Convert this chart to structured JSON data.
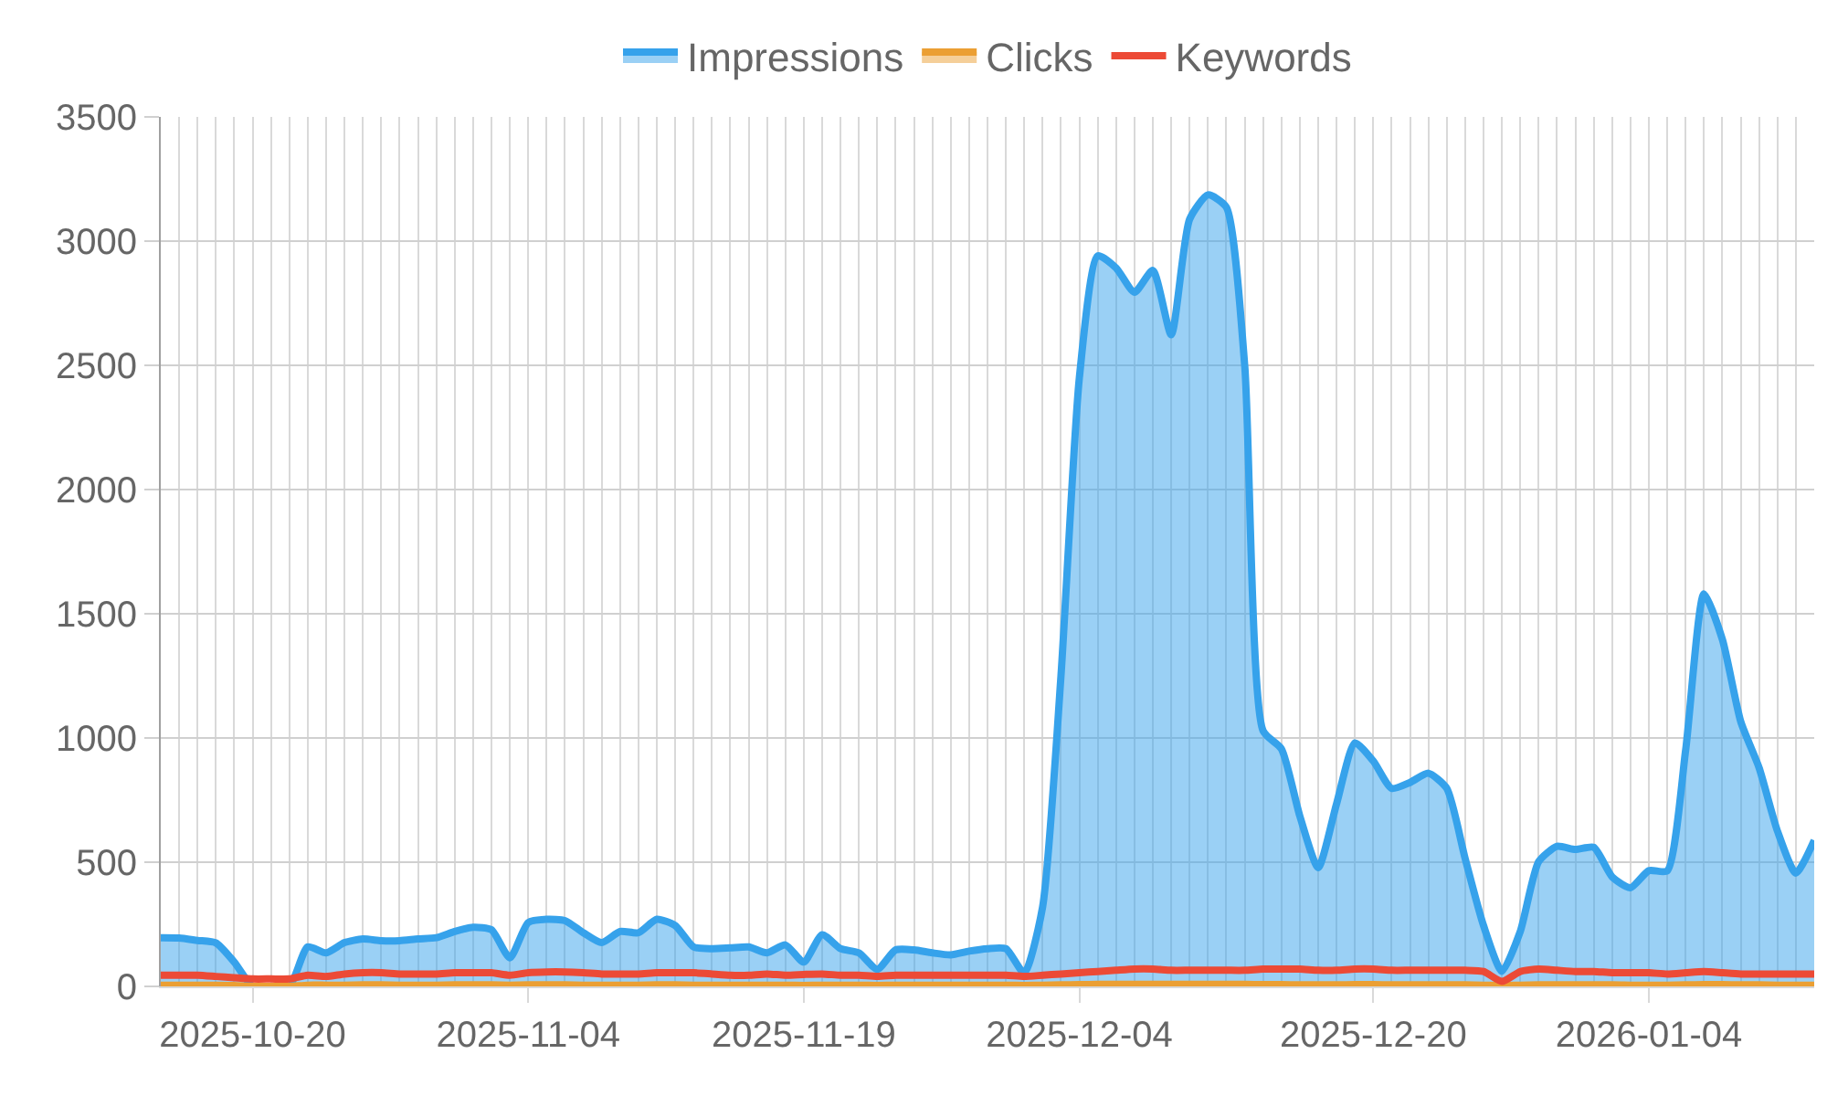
{
  "chart_data": {
    "type": "area",
    "x": [
      "2025-10-15",
      "2025-10-16",
      "2025-10-17",
      "2025-10-18",
      "2025-10-19",
      "2025-10-20",
      "2025-10-21",
      "2025-10-22",
      "2025-10-23",
      "2025-10-24",
      "2025-10-25",
      "2025-10-26",
      "2025-10-27",
      "2025-10-28",
      "2025-10-29",
      "2025-10-30",
      "2025-10-31",
      "2025-11-01",
      "2025-11-02",
      "2025-11-03",
      "2025-11-04",
      "2025-11-05",
      "2025-11-06",
      "2025-11-07",
      "2025-11-08",
      "2025-11-09",
      "2025-11-10",
      "2025-11-11",
      "2025-11-12",
      "2025-11-13",
      "2025-11-14",
      "2025-11-15",
      "2025-11-16",
      "2025-11-17",
      "2025-11-18",
      "2025-11-19",
      "2025-11-20",
      "2025-11-21",
      "2025-11-22",
      "2025-11-23",
      "2025-11-24",
      "2025-11-25",
      "2025-11-26",
      "2025-11-27",
      "2025-11-28",
      "2025-11-29",
      "2025-11-30",
      "2025-12-01",
      "2025-12-02",
      "2025-12-03",
      "2025-12-04",
      "2025-12-05",
      "2025-12-06",
      "2025-12-07",
      "2025-12-08",
      "2025-12-09",
      "2025-12-10",
      "2025-12-11",
      "2025-12-12",
      "2025-12-13",
      "2025-12-14",
      "2025-12-15",
      "2025-12-16",
      "2025-12-17",
      "2025-12-18",
      "2025-12-19",
      "2025-12-20",
      "2025-12-21",
      "2025-12-22",
      "2025-12-23",
      "2025-12-24",
      "2025-12-25",
      "2025-12-26",
      "2025-12-27",
      "2025-12-28",
      "2025-12-29",
      "2025-12-30",
      "2025-12-31",
      "2026-01-01",
      "2026-01-02",
      "2026-01-03",
      "2026-01-04",
      "2026-01-05",
      "2026-01-06",
      "2026-01-07",
      "2026-01-08",
      "2026-01-09",
      "2026-01-10",
      "2026-01-11",
      "2026-01-12",
      "2026-01-13"
    ],
    "series": [
      {
        "name": "Impressions",
        "color": "#36a2eb",
        "values": [
          196,
          195,
          185,
          175,
          98,
          0,
          0,
          0,
          159,
          135,
          176,
          191,
          184,
          184,
          191,
          196,
          221,
          238,
          228,
          115,
          257,
          270,
          265,
          216,
          176,
          221,
          216,
          270,
          245,
          159,
          152,
          155,
          159,
          135,
          167,
          98,
          208,
          152,
          135,
          69,
          147,
          147,
          135,
          127,
          142,
          152,
          152,
          54,
          320,
          1250,
          2450,
          2941,
          2892,
          2794,
          2882,
          2623,
          3088,
          3186,
          3137,
          2500,
          1029,
          956,
          686,
          478,
          735,
          980,
          907,
          797,
          821,
          858,
          797,
          515,
          245,
          61,
          221,
          502,
          564,
          551,
          560,
          441,
          397,
          466,
          465,
          950,
          1580,
          1397,
          1066,
          880,
          625,
          456,
          588
        ]
      },
      {
        "name": "Clicks",
        "color": "#eb9f33",
        "values": [
          5,
          5,
          5,
          5,
          4,
          0,
          0,
          0,
          5,
          5,
          5,
          6,
          6,
          5,
          5,
          5,
          6,
          6,
          6,
          5,
          6,
          6,
          6,
          5,
          5,
          5,
          5,
          6,
          6,
          5,
          5,
          5,
          5,
          5,
          5,
          4,
          5,
          5,
          5,
          4,
          5,
          5,
          5,
          5,
          5,
          5,
          5,
          4,
          5,
          6,
          7,
          8,
          8,
          8,
          8,
          8,
          8,
          8,
          8,
          8,
          7,
          7,
          6,
          6,
          6,
          7,
          7,
          6,
          6,
          6,
          6,
          6,
          5,
          3,
          5,
          6,
          6,
          6,
          6,
          6,
          5,
          5,
          5,
          6,
          7,
          7,
          6,
          6,
          5,
          5,
          5
        ]
      },
      {
        "name": "Keywords",
        "type": "line",
        "color": "#ec4a36",
        "values": [
          45,
          45,
          45,
          40,
          35,
          30,
          30,
          30,
          45,
          40,
          50,
          55,
          55,
          50,
          50,
          50,
          55,
          55,
          55,
          45,
          55,
          58,
          58,
          55,
          50,
          50,
          50,
          55,
          55,
          55,
          50,
          45,
          45,
          50,
          45,
          48,
          50,
          45,
          45,
          40,
          45,
          45,
          45,
          45,
          45,
          45,
          45,
          40,
          45,
          50,
          55,
          60,
          65,
          70,
          70,
          65,
          65,
          65,
          65,
          65,
          70,
          70,
          70,
          65,
          65,
          70,
          70,
          65,
          65,
          65,
          65,
          65,
          60,
          20,
          60,
          70,
          65,
          60,
          60,
          55,
          55,
          55,
          50,
          55,
          60,
          55,
          50,
          50,
          50,
          50,
          50
        ]
      }
    ],
    "xlim": [
      "2025-10-15",
      "2026-01-13"
    ],
    "xticks": [
      "2025-10-20",
      "2025-11-04",
      "2025-11-19",
      "2025-12-04",
      "2025-12-20",
      "2026-01-04"
    ],
    "ylim": [
      0,
      3500
    ],
    "yticks": [
      0,
      500,
      1000,
      1500,
      2000,
      2500,
      3000,
      3500
    ],
    "grid": true,
    "legend": "top"
  }
}
